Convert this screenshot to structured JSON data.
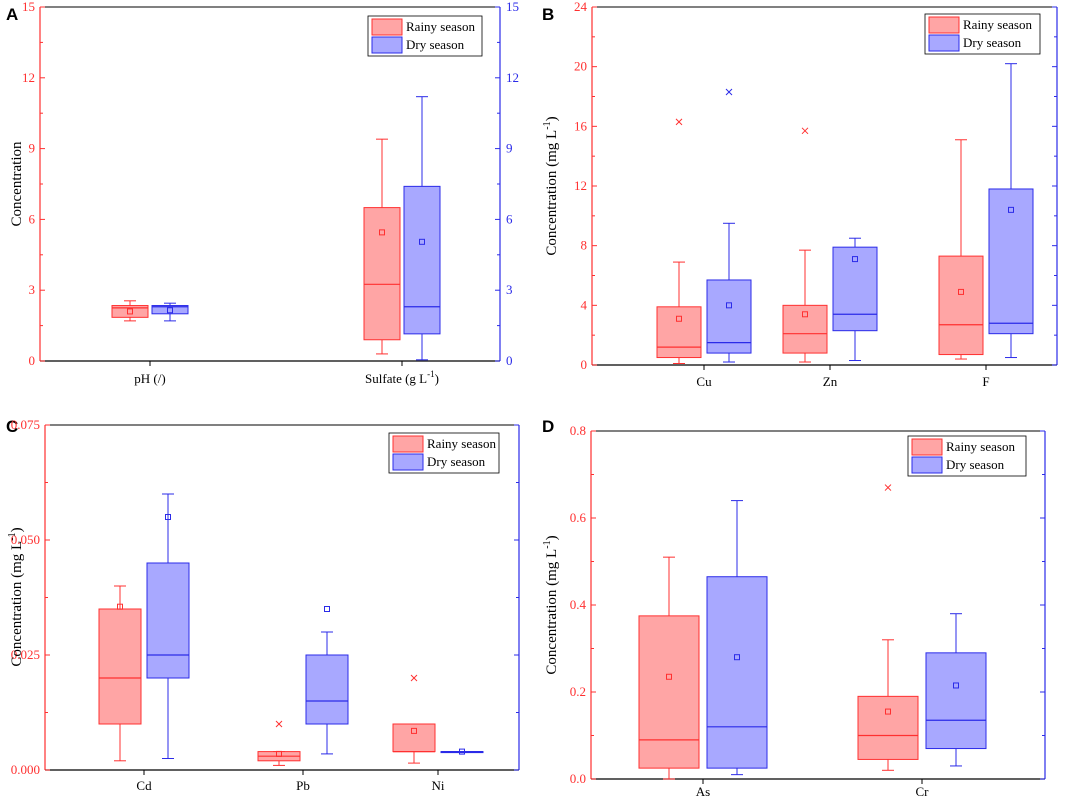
{
  "colors": {
    "rainy_stroke": "#ff3030",
    "rainy_fill": "#ffa5a5",
    "dry_stroke": "#2b2be8",
    "dry_fill": "#a8a8ff",
    "axis": "#000000"
  },
  "legend": {
    "rainy": "Rainy season",
    "dry": "Dry season"
  },
  "chart_data": [
    {
      "type": "box",
      "panel_label": "A",
      "ylabel": "Concentration",
      "ylabel_sup": "",
      "ylabel_tail": "",
      "ylim": [
        0,
        15
      ],
      "yticks": [
        "0",
        "3",
        "6",
        "9",
        "12",
        "15"
      ],
      "right_ylim": [
        0,
        15
      ],
      "right_yticks": [
        "0",
        "3",
        "6",
        "9",
        "12",
        "15"
      ],
      "categories": [
        {
          "label": "pH (/)",
          "sup": "",
          "tail": ""
        },
        {
          "label": "Sulfate (g L",
          "sup": "-1",
          "tail": ")"
        }
      ],
      "series": [
        {
          "name": "Rainy season",
          "boxes": [
            {
              "whisker_low": 1.7,
              "q1": 1.85,
              "median": 2.25,
              "q3": 2.35,
              "whisker_high": 2.55,
              "mean": 2.1
            },
            {
              "whisker_low": 0.3,
              "q1": 0.9,
              "median": 3.25,
              "q3": 6.5,
              "whisker_high": 9.4,
              "mean": 5.45
            }
          ],
          "outliers": [
            [],
            []
          ]
        },
        {
          "name": "Dry season",
          "boxes": [
            {
              "whisker_low": 1.7,
              "q1": 2.0,
              "median": 2.3,
              "q3": 2.35,
              "whisker_high": 2.45,
              "mean": 2.15
            },
            {
              "whisker_low": 0.05,
              "q1": 1.15,
              "median": 2.3,
              "q3": 7.4,
              "whisker_high": 11.2,
              "mean": 5.05
            }
          ],
          "outliers": [
            [],
            []
          ]
        }
      ]
    },
    {
      "type": "box",
      "panel_label": "B",
      "ylabel": "Concentration (mg L",
      "ylabel_sup": "-1",
      "ylabel_tail": ")",
      "ylim": [
        0,
        24
      ],
      "yticks": [
        "0",
        "4",
        "8",
        "12",
        "16",
        "20",
        "24"
      ],
      "right_ylim": [
        0,
        24
      ],
      "right_yticks": [],
      "categories": [
        {
          "label": "Cu",
          "sup": "",
          "tail": ""
        },
        {
          "label": "Zn",
          "sup": "",
          "tail": ""
        },
        {
          "label": "F",
          "sup": "",
          "tail": ""
        }
      ],
      "series": [
        {
          "name": "Rainy season",
          "boxes": [
            {
              "whisker_low": 0.1,
              "q1": 0.5,
              "median": 1.2,
              "q3": 3.9,
              "whisker_high": 6.9,
              "mean": 3.1
            },
            {
              "whisker_low": 0.2,
              "q1": 0.8,
              "median": 2.1,
              "q3": 4.0,
              "whisker_high": 7.7,
              "mean": 3.4
            },
            {
              "whisker_low": 0.4,
              "q1": 0.7,
              "median": 2.7,
              "q3": 7.3,
              "whisker_high": 15.1,
              "mean": 4.9
            }
          ],
          "outliers": [
            [
              16.3
            ],
            [
              15.7
            ],
            []
          ]
        },
        {
          "name": "Dry season",
          "boxes": [
            {
              "whisker_low": 0.2,
              "q1": 0.8,
              "median": 1.5,
              "q3": 5.7,
              "whisker_high": 9.5,
              "mean": 4.0
            },
            {
              "whisker_low": 0.3,
              "q1": 2.3,
              "median": 3.4,
              "q3": 7.9,
              "whisker_high": 8.5,
              "mean": 7.1
            },
            {
              "whisker_low": 0.5,
              "q1": 2.1,
              "median": 2.8,
              "q3": 11.8,
              "whisker_high": 20.2,
              "mean": 10.4
            }
          ],
          "outliers": [
            [
              18.3
            ],
            [],
            []
          ]
        }
      ]
    },
    {
      "type": "box",
      "panel_label": "C",
      "ylabel": "Concentration (mg L",
      "ylabel_sup": "-1",
      "ylabel_tail": ")",
      "ylim": [
        0,
        0.075
      ],
      "yticks": [
        "0.000",
        "0.025",
        "0.050",
        "0.075"
      ],
      "right_ylim": [
        0,
        0.075
      ],
      "right_yticks": [],
      "categories": [
        {
          "label": "Cd",
          "sup": "",
          "tail": ""
        },
        {
          "label": "Pb",
          "sup": "",
          "tail": ""
        },
        {
          "label": "Ni",
          "sup": "",
          "tail": ""
        }
      ],
      "series": [
        {
          "name": "Rainy season",
          "boxes": [
            {
              "whisker_low": 0.002,
              "q1": 0.01,
              "median": 0.02,
              "q3": 0.035,
              "whisker_high": 0.04,
              "mean": 0.0355
            },
            {
              "whisker_low": 0.001,
              "q1": 0.002,
              "median": 0.003,
              "q3": 0.004,
              "whisker_high": 0.004,
              "mean": 0.0035
            },
            {
              "whisker_low": 0.0015,
              "q1": 0.004,
              "median": 0.004,
              "q3": 0.01,
              "whisker_high": 0.01,
              "mean": 0.0085
            }
          ],
          "outliers": [
            [],
            [
              0.01
            ],
            [
              0.02
            ]
          ]
        },
        {
          "name": "Dry season",
          "boxes": [
            {
              "whisker_low": 0.0025,
              "q1": 0.02,
              "median": 0.025,
              "q3": 0.045,
              "whisker_high": 0.06,
              "mean": 0.055
            },
            {
              "whisker_low": 0.0035,
              "q1": 0.01,
              "median": 0.015,
              "q3": 0.025,
              "whisker_high": 0.03,
              "mean": 0.035
            },
            {
              "whisker_low": 0.004,
              "q1": 0.004,
              "median": 0.004,
              "q3": 0.004,
              "whisker_high": 0.004,
              "mean": 0.004
            }
          ],
          "outliers": [
            [],
            [],
            []
          ]
        }
      ]
    },
    {
      "type": "box",
      "panel_label": "D",
      "ylabel": "Concentration (mg L",
      "ylabel_sup": "-1",
      "ylabel_tail": ")",
      "ylim": [
        0,
        0.8
      ],
      "yticks": [
        "0.0",
        "0.2",
        "0.4",
        "0.6",
        "0.8"
      ],
      "right_ylim": [
        0,
        0.8
      ],
      "right_yticks": [],
      "categories": [
        {
          "label": "As",
          "sup": "",
          "tail": ""
        },
        {
          "label": "Cr",
          "sup": "",
          "tail": ""
        }
      ],
      "series": [
        {
          "name": "Rainy season",
          "boxes": [
            {
              "whisker_low": 0.0,
              "q1": 0.025,
              "median": 0.09,
              "q3": 0.375,
              "whisker_high": 0.51,
              "mean": 0.235
            },
            {
              "whisker_low": 0.02,
              "q1": 0.045,
              "median": 0.1,
              "q3": 0.19,
              "whisker_high": 0.32,
              "mean": 0.155
            }
          ],
          "outliers": [
            [],
            [
              0.67
            ]
          ]
        },
        {
          "name": "Dry season",
          "boxes": [
            {
              "whisker_low": 0.01,
              "q1": 0.025,
              "median": 0.12,
              "q3": 0.465,
              "whisker_high": 0.64,
              "mean": 0.28
            },
            {
              "whisker_low": 0.03,
              "q1": 0.07,
              "median": 0.135,
              "q3": 0.29,
              "whisker_high": 0.38,
              "mean": 0.215
            }
          ],
          "outliers": [
            [],
            []
          ]
        }
      ]
    }
  ]
}
